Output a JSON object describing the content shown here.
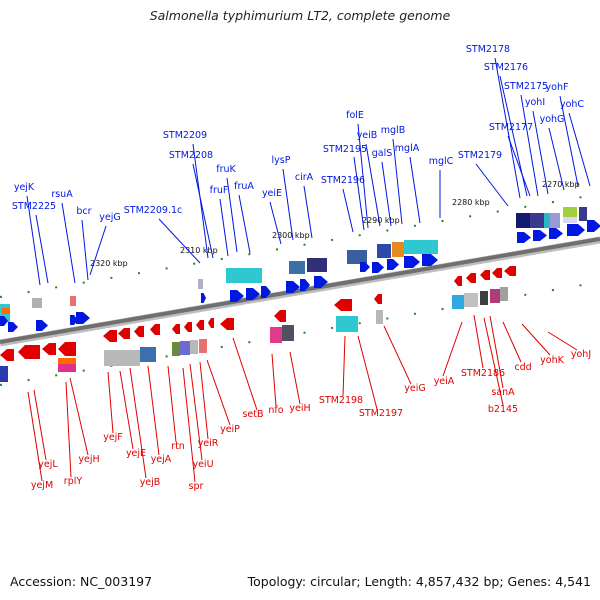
{
  "title": "Salmonella typhimurium LT2, complete genome",
  "footer": {
    "accession": "Accession: NC_003197",
    "summary": "Topology: circular; Length: 4,857,432 bp; Genes: 4,541"
  },
  "colors": {
    "forward_strand": "#0018e0",
    "reverse_strand": "#e00000",
    "backbone": "#777777",
    "tick": "#1a8a1a"
  },
  "kbp_ticks": [
    "2270 kbp",
    "2280 kbp",
    "2290 kbp",
    "2300 kbp",
    "2310 kbp",
    "2320 kbp"
  ],
  "forward_genes": [
    "STM2178",
    "STM2176",
    "yohF",
    "STM2175",
    "yohI",
    "yohC",
    "STM2177",
    "yohG",
    "folE",
    "yeiB",
    "mglB",
    "STM2195",
    "galS",
    "mglA",
    "mglC",
    "STM2179",
    "STM2196",
    "STM2209",
    "STM2208",
    "lysP",
    "fruK",
    "cirA",
    "fruF",
    "fruA",
    "yejK",
    "yeiE",
    "rsuA",
    "STM2225",
    "bcr",
    "yejG",
    "STM2209.1c"
  ],
  "reverse_genes": [
    "yohJ",
    "yohK",
    "cdd",
    "sanA",
    "b2145",
    "STM2186",
    "yeiA",
    "yeiG",
    "STM2198",
    "STM2197",
    "setB",
    "nfo",
    "yeiH",
    "yeiP",
    "yeiR",
    "yeiU",
    "rtn",
    "spr",
    "yejA",
    "yejB",
    "yejE",
    "yejF",
    "yejH",
    "yejL",
    "yejM",
    "rplY"
  ]
}
